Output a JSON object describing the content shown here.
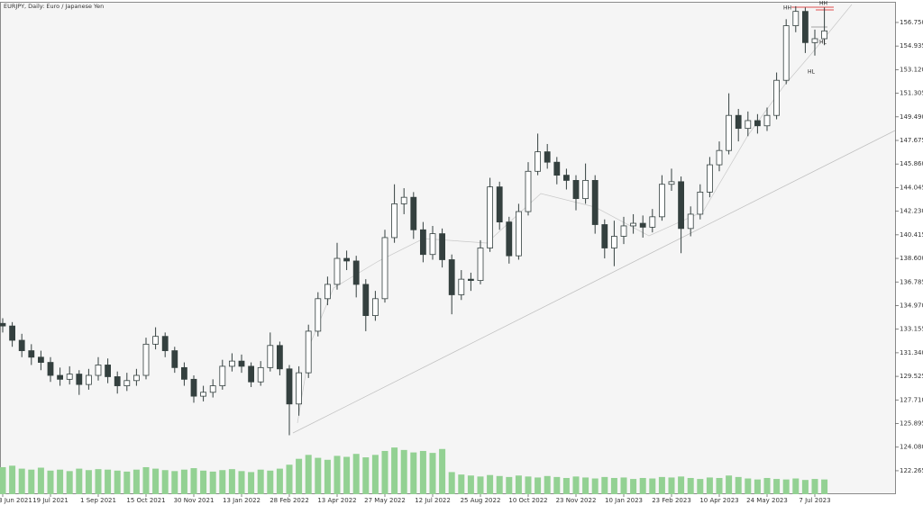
{
  "chart_data": {
    "type": "candlestick",
    "title": "EURJPY, Daily:  Euro / Japanese Yen",
    "annotations": [
      "HH",
      "HH",
      "HL",
      "HL"
    ],
    "categories": [
      "3 Jun 2021",
      null,
      null,
      null,
      null,
      "19 Jul 2021",
      null,
      null,
      null,
      null,
      "1 Sep 2021",
      null,
      null,
      null,
      null,
      "15 Oct 2021",
      null,
      null,
      null,
      null,
      "30 Nov 2021",
      null,
      null,
      null,
      null,
      "13 Jan 2022",
      null,
      null,
      null,
      null,
      "28 Feb 2022",
      null,
      null,
      null,
      null,
      "13 Apr 2022",
      null,
      null,
      null,
      null,
      "27 May 2022",
      null,
      null,
      null,
      null,
      "12 Jul 2022",
      null,
      null,
      null,
      null,
      "25 Aug 2022",
      null,
      null,
      null,
      null,
      "10 Oct 2022",
      null,
      null,
      null,
      null,
      "23 Nov 2022",
      null,
      null,
      null,
      null,
      "10 Jan 2023",
      null,
      null,
      null,
      null,
      "23 Feb 2023",
      null,
      null,
      null,
      null,
      "10 Apr 2023",
      null,
      null,
      null,
      null,
      "24 May 2023",
      null,
      null,
      null,
      null,
      "7 Jul 2023",
      null
    ],
    "open": [
      133.6,
      133.4,
      132.3,
      131.5,
      131.0,
      130.6,
      129.6,
      129.3,
      129.7,
      128.9,
      129.6,
      130.4,
      129.5,
      128.8,
      129.2,
      129.6,
      132.0,
      132.6,
      131.5,
      130.2,
      129.3,
      128.0,
      128.3,
      128.8,
      130.3,
      130.7,
      130.3,
      129.1,
      130.2,
      131.9,
      130.1,
      127.4,
      129.8,
      133.0,
      135.5,
      136.6,
      138.6,
      138.4,
      136.6,
      134.2,
      135.5,
      140.2,
      142.8,
      143.3,
      140.8,
      138.9,
      140.5,
      138.5,
      135.8,
      137.0,
      136.9,
      139.4,
      144.1,
      141.4,
      138.8,
      142.2,
      145.3,
      146.8,
      146.0,
      145.0,
      144.6,
      143.2,
      144.6,
      141.2,
      139.4,
      140.3,
      141.1,
      141.3,
      141.0,
      141.8,
      144.3,
      144.5,
      140.9,
      142.0,
      143.7,
      145.8,
      146.9,
      149.6,
      148.6,
      149.2,
      148.8,
      149.6,
      152.3,
      156.5,
      157.6,
      155.2,
      155.5
    ],
    "high": [
      134.0,
      133.7,
      132.8,
      132.0,
      131.5,
      131.0,
      130.2,
      130.3,
      130.0,
      130.1,
      131.0,
      130.9,
      129.9,
      129.8,
      130.1,
      132.5,
      133.3,
      132.9,
      131.8,
      130.6,
      129.6,
      128.8,
      129.3,
      130.8,
      131.3,
      131.2,
      130.6,
      130.7,
      132.9,
      132.2,
      130.4,
      130.3,
      133.5,
      136.0,
      137.2,
      139.8,
      139.2,
      138.8,
      137.0,
      136.1,
      140.8,
      144.3,
      144.0,
      143.7,
      141.4,
      141.1,
      140.9,
      138.9,
      137.7,
      137.5,
      140.0,
      144.8,
      144.5,
      141.8,
      142.8,
      146.0,
      148.2,
      147.4,
      146.4,
      145.5,
      145.0,
      145.9,
      145.0,
      141.6,
      141.5,
      141.8,
      142.0,
      141.9,
      142.4,
      145.0,
      145.5,
      144.9,
      142.6,
      144.3,
      146.4,
      147.6,
      151.3,
      150.1,
      149.9,
      149.7,
      150.2,
      152.9,
      157.0,
      158.0,
      157.9,
      156.2,
      157.9
    ],
    "low": [
      132.9,
      131.8,
      131.0,
      130.4,
      130.0,
      129.1,
      128.8,
      128.9,
      128.1,
      128.5,
      129.2,
      129.0,
      128.2,
      128.4,
      128.8,
      129.3,
      131.6,
      131.0,
      129.8,
      128.8,
      127.5,
      127.6,
      127.9,
      128.5,
      129.9,
      129.8,
      128.7,
      128.8,
      129.9,
      129.6,
      125.0,
      126.5,
      129.4,
      132.6,
      135.0,
      136.2,
      137.7,
      135.6,
      133.0,
      133.8,
      135.2,
      139.8,
      142.0,
      140.1,
      138.3,
      138.5,
      137.9,
      134.3,
      135.4,
      136.1,
      136.6,
      139.1,
      140.8,
      138.2,
      138.5,
      141.9,
      145.0,
      145.5,
      144.3,
      143.9,
      142.3,
      142.8,
      140.5,
      138.6,
      138.0,
      139.7,
      140.5,
      140.2,
      140.6,
      141.5,
      143.8,
      139.0,
      140.3,
      141.6,
      143.3,
      145.3,
      146.6,
      147.6,
      148.0,
      148.2,
      148.4,
      149.3,
      152.0,
      156.0,
      154.4,
      154.2,
      155.0
    ],
    "close": [
      133.4,
      132.3,
      131.5,
      131.0,
      130.6,
      129.6,
      129.3,
      129.7,
      128.9,
      129.6,
      130.4,
      129.5,
      128.8,
      129.2,
      129.6,
      132.0,
      132.6,
      131.5,
      130.2,
      129.3,
      128.0,
      128.3,
      128.8,
      130.3,
      130.7,
      130.3,
      129.1,
      130.2,
      131.9,
      130.1,
      127.4,
      129.8,
      133.0,
      135.5,
      136.6,
      138.6,
      138.4,
      136.6,
      134.2,
      135.5,
      140.2,
      142.8,
      143.3,
      140.8,
      138.9,
      140.5,
      138.5,
      135.8,
      137.0,
      136.9,
      139.4,
      144.1,
      141.4,
      138.8,
      142.2,
      145.3,
      146.8,
      146.0,
      145.0,
      144.6,
      143.2,
      144.6,
      141.2,
      139.4,
      140.3,
      141.1,
      141.3,
      141.0,
      141.8,
      144.3,
      144.5,
      140.9,
      142.0,
      143.7,
      145.8,
      146.9,
      149.6,
      148.6,
      149.2,
      148.8,
      149.6,
      152.3,
      156.5,
      157.6,
      155.2,
      155.5,
      156.1
    ],
    "volumes": [
      55,
      58,
      52,
      50,
      54,
      48,
      50,
      47,
      52,
      49,
      51,
      50,
      48,
      46,
      50,
      55,
      52,
      49,
      47,
      50,
      53,
      48,
      46,
      49,
      51,
      47,
      45,
      50,
      48,
      52,
      60,
      72,
      80,
      74,
      70,
      78,
      76,
      82,
      75,
      80,
      88,
      95,
      90,
      85,
      88,
      84,
      92,
      45,
      40,
      38,
      36,
      39,
      37,
      35,
      38,
      36,
      34,
      37,
      35,
      33,
      36,
      34,
      32,
      35,
      33,
      34,
      31,
      33,
      32,
      35,
      34,
      36,
      33,
      31,
      34,
      33,
      38,
      35,
      32,
      30,
      33,
      31,
      30,
      32,
      29,
      31,
      30
    ],
    "vlim": [
      0,
      1000
    ],
    "up_color": "#ffffff",
    "down_color": "#34403f",
    "wick_color": "#34403f",
    "volume_color": "#93d193",
    "ylim": [
      120.46,
      158.27
    ],
    "yticks": [
      {
        "value": 156.75,
        "label": "156.750"
      },
      154.935,
      {
        "value": 153.12,
        "label": "153.120"
      },
      151.305,
      {
        "value": 149.49,
        "label": "149.490"
      },
      147.675,
      {
        "value": 145.86,
        "label": "145.860"
      },
      144.045,
      {
        "value": 142.23,
        "label": "142.230"
      },
      140.415,
      {
        "value": 138.6,
        "label": "138.600"
      },
      136.785,
      {
        "value": 134.97,
        "label": "134.970"
      },
      133.155,
      {
        "value": 131.34,
        "label": "131.340"
      },
      129.525,
      {
        "value": 127.71,
        "label": "127.710"
      },
      125.895,
      {
        "value": 124.08,
        "label": "124.080"
      },
      122.265
    ],
    "grid": false
  }
}
